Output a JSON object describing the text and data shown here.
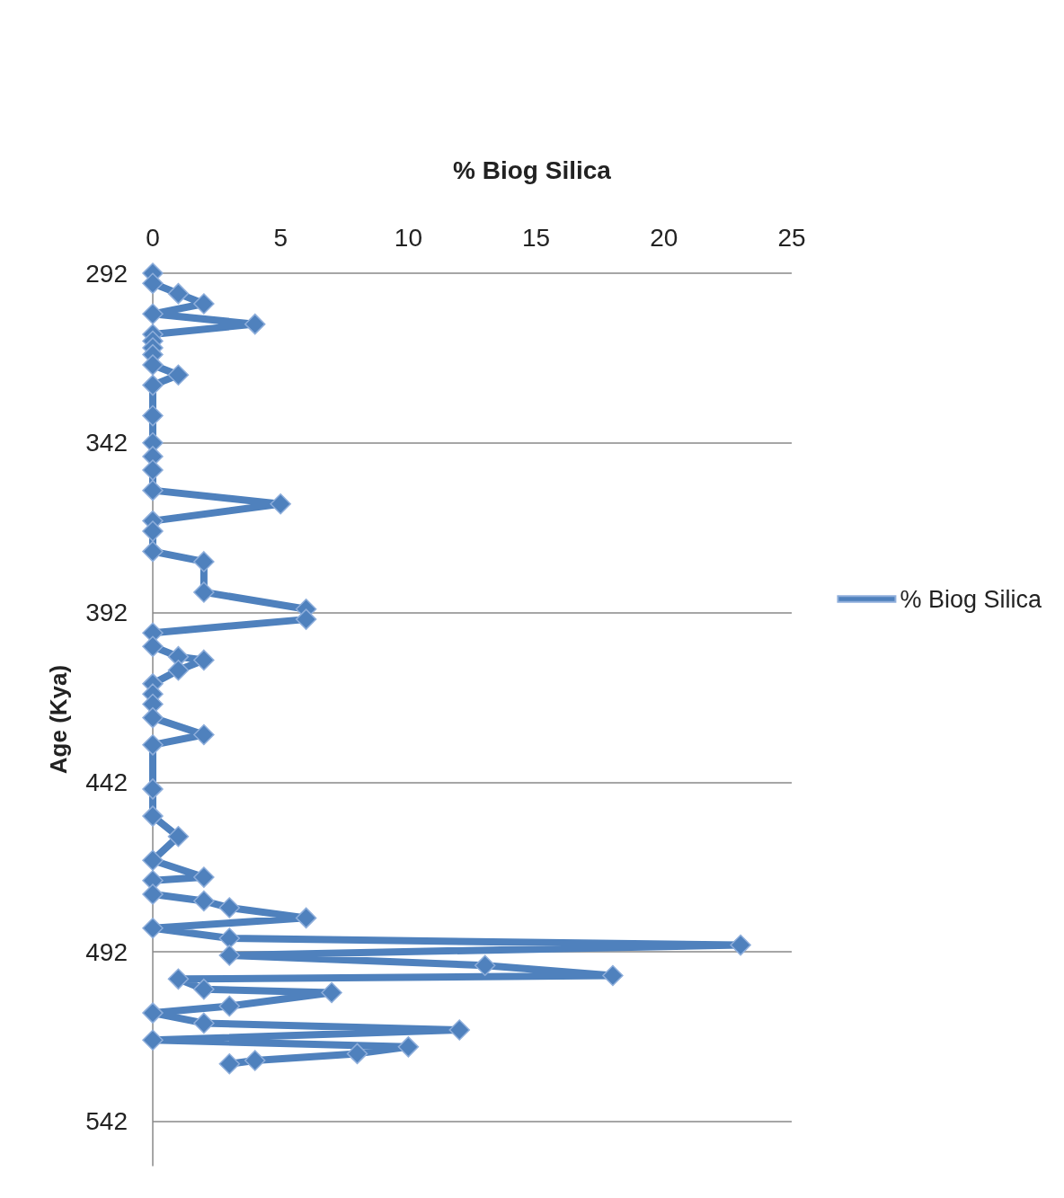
{
  "chart_data": {
    "type": "line",
    "title": "% Biog Silica",
    "ylabel": "Age (Kya)",
    "series": [
      {
        "name": "% Biog Silica",
        "color": "#4f81bd",
        "x": [
          0,
          0,
          1,
          2,
          0,
          4,
          0,
          0,
          0,
          0,
          0,
          1,
          0,
          0,
          0,
          0,
          0,
          0,
          5,
          0,
          0,
          0,
          2,
          2,
          6,
          6,
          0,
          0,
          1,
          2,
          1,
          0,
          0,
          0,
          0,
          2,
          0,
          0,
          0,
          1,
          0,
          2,
          0,
          0,
          2,
          3,
          6,
          0,
          3,
          23,
          3,
          13,
          18,
          1,
          2,
          7,
          3,
          0,
          2,
          12,
          0,
          10,
          8,
          4,
          3
        ],
        "values": [
          292,
          295,
          298,
          301,
          304,
          307,
          310,
          312,
          314,
          316,
          319,
          322,
          325,
          334,
          342,
          346,
          350,
          356,
          360,
          365,
          368,
          374,
          377,
          386,
          391,
          394,
          398,
          402,
          405,
          406,
          409,
          413,
          416,
          419,
          423,
          428,
          431,
          444,
          452,
          458,
          465,
          470,
          471,
          475,
          477,
          479,
          482,
          485,
          488,
          490,
          493,
          496,
          499,
          500,
          503,
          504,
          508,
          510,
          513,
          515,
          518,
          520,
          522,
          524,
          525
        ]
      }
    ],
    "xlim": [
      0,
      25
    ],
    "xticks": [
      0,
      5,
      10,
      15,
      20,
      25
    ],
    "ylim": [
      555,
      292
    ],
    "yticks": [
      292,
      342,
      392,
      442,
      492,
      542
    ],
    "grid": "y",
    "legend": "right",
    "marker": "diamond",
    "line_style": "solid"
  }
}
